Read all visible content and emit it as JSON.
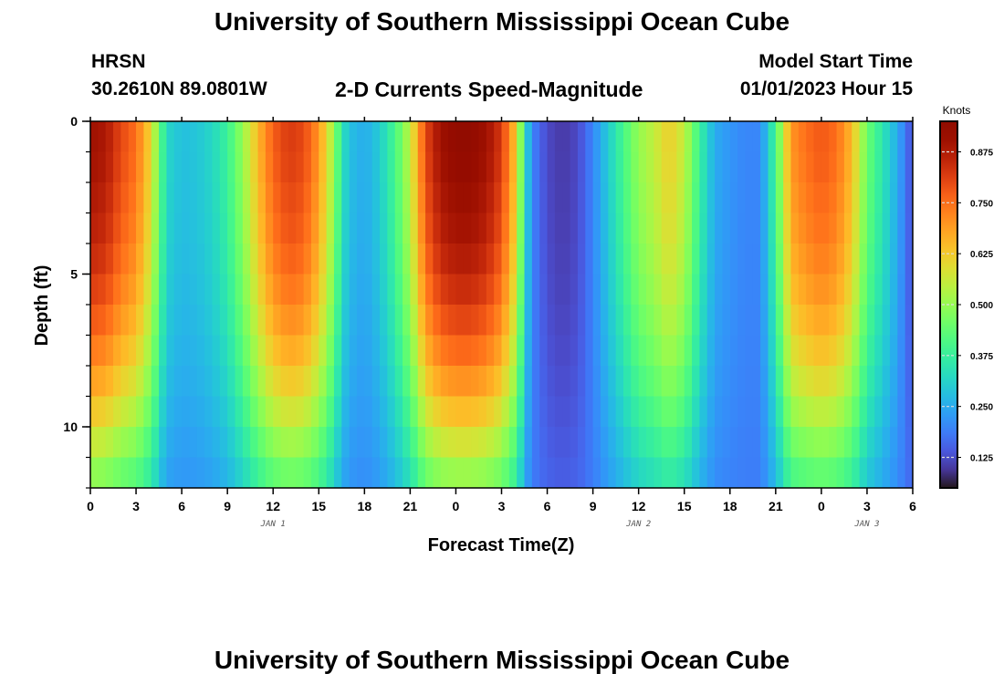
{
  "header": {
    "title": "University of Southern Mississippi Ocean Cube",
    "station": "HRSN",
    "coordinates": "30.2610N  89.0801W",
    "subtitle": "2-D Currents Speed-Magnitude",
    "model_start_label": "Model Start Time",
    "model_start_value": "01/01/2023 Hour 15"
  },
  "footer": {
    "title": "University of Southern Mississippi Ocean Cube"
  },
  "chart_data": {
    "type": "heatmap",
    "title": "2-D Currents Speed-Magnitude",
    "xlabel": "Forecast Time(Z)",
    "ylabel": "Depth (ft)",
    "x_range_hours": [
      0,
      54
    ],
    "x_ticks": [
      "0",
      "3",
      "6",
      "9",
      "12",
      "15",
      "18",
      "21",
      "0",
      "3",
      "6",
      "9",
      "12",
      "15",
      "18",
      "21",
      "0",
      "3",
      "6"
    ],
    "date_labels": [
      {
        "label": "JAN 1",
        "hour": 12
      },
      {
        "label": "JAN 2",
        "hour": 36
      },
      {
        "label": "JAN 3",
        "hour": 51
      }
    ],
    "y_range_ft": [
      0,
      12
    ],
    "y_ticks": [
      "0",
      "5",
      "10"
    ],
    "colorbar": {
      "title": "Knots",
      "min": 0.05,
      "max": 0.95,
      "ticks": [
        "0.875",
        "0.750",
        "0.625",
        "0.500",
        "0.375",
        "0.250",
        "0.125"
      ],
      "tick_values": [
        0.875,
        0.75,
        0.625,
        0.5,
        0.375,
        0.25,
        0.125
      ],
      "colormap": "turbo"
    },
    "surface_speed_profile": {
      "hours": [
        0,
        1,
        2,
        3,
        4,
        4.5,
        5,
        6,
        7,
        8,
        9,
        10,
        11,
        12,
        13,
        14,
        15,
        16,
        16.5,
        17,
        18,
        19,
        20,
        21,
        22,
        23,
        24,
        25,
        26,
        27,
        28,
        28.5,
        29,
        30,
        31,
        32,
        33,
        34,
        35,
        36,
        37,
        38,
        39,
        40,
        41,
        42,
        43,
        44,
        45,
        45.5,
        46,
        47,
        48,
        49,
        50,
        51,
        52,
        53,
        54
      ],
      "speed_knots": [
        0.9,
        0.88,
        0.8,
        0.75,
        0.6,
        0.45,
        0.32,
        0.28,
        0.29,
        0.32,
        0.38,
        0.5,
        0.65,
        0.77,
        0.82,
        0.8,
        0.7,
        0.5,
        0.35,
        0.28,
        0.25,
        0.3,
        0.4,
        0.55,
        0.8,
        0.9,
        0.93,
        0.93,
        0.9,
        0.82,
        0.62,
        0.35,
        0.2,
        0.12,
        0.1,
        0.12,
        0.2,
        0.3,
        0.4,
        0.5,
        0.55,
        0.62,
        0.55,
        0.38,
        0.25,
        0.22,
        0.2,
        0.2,
        0.4,
        0.55,
        0.7,
        0.75,
        0.78,
        0.75,
        0.65,
        0.45,
        0.35,
        0.25,
        0.12
      ]
    },
    "depth_attenuation_pct": [
      100,
      99,
      97,
      95,
      92,
      88,
      83,
      77,
      70,
      62,
      53,
      44
    ]
  }
}
